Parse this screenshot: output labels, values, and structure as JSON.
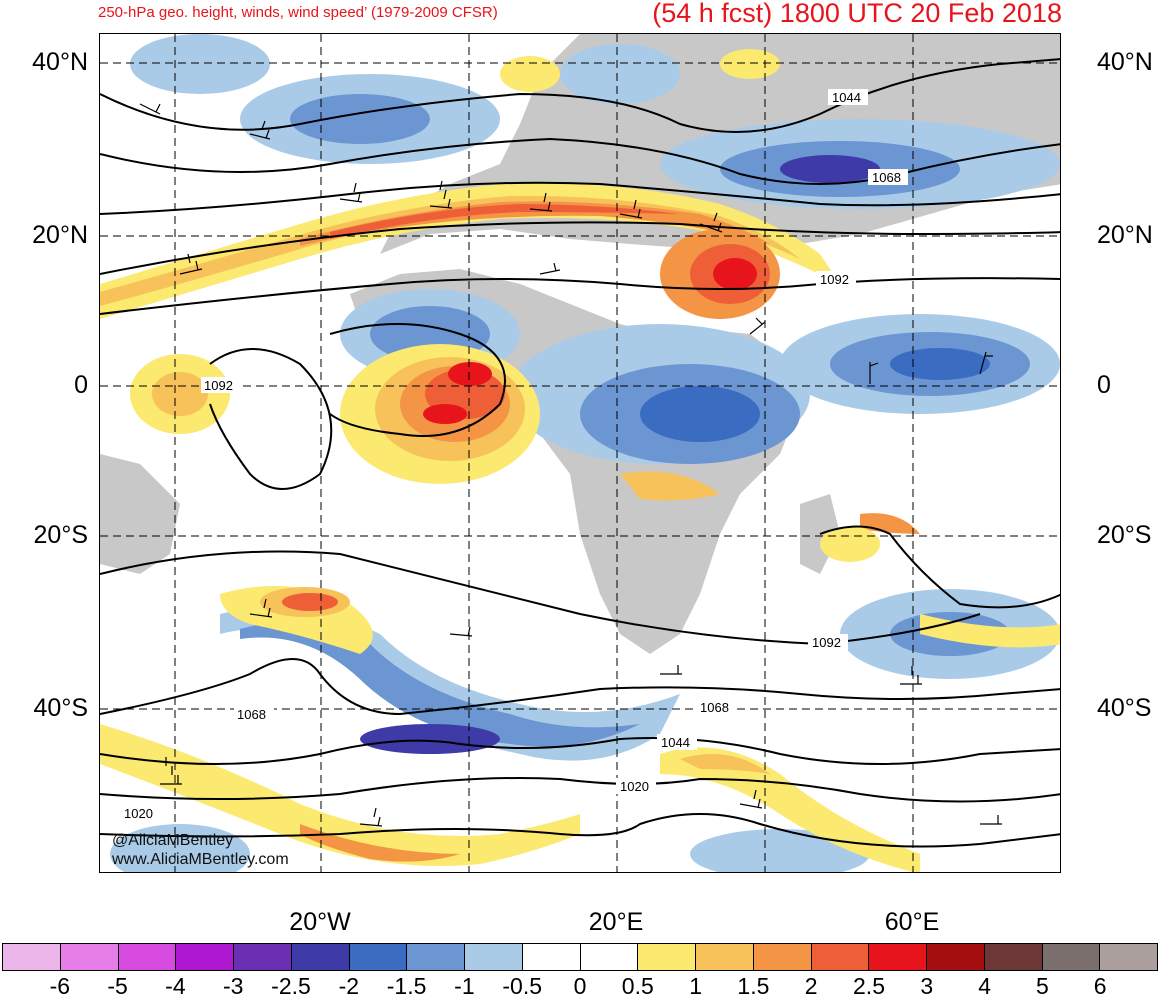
{
  "header": {
    "title_left": "250-hPa geo. height, winds, wind speed’ (1979-2009 CFSR)",
    "title_right": "(54 h fcst) 1800 UTC 20 Feb 2018"
  },
  "axes": {
    "lat_labels": [
      "40°N",
      "20°N",
      "0",
      "20°S",
      "40°S"
    ],
    "lon_labels": [
      "20°W",
      "20°E",
      "60°E"
    ]
  },
  "contour_labels": [
    "1044",
    "1068",
    "1092",
    "1092",
    "1092",
    "1068",
    "1068",
    "1044",
    "1020",
    "1020"
  ],
  "credits": {
    "handle": "@AliciaMBentley",
    "website": "www.AliciaMBentley.com"
  },
  "colorbar": {
    "labels": [
      "-6",
      "-5",
      "-4",
      "-3",
      "-2.5",
      "-2",
      "-1.5",
      "-1",
      "-0.5",
      "0",
      "0.5",
      "1",
      "1.5",
      "2",
      "2.5",
      "3",
      "4",
      "5",
      "6"
    ],
    "colors": [
      "#ecb5e9",
      "#e57ee6",
      "#d84be0",
      "#ad18d0",
      "#6b2fb4",
      "#3e3aa8",
      "#3a6cc1",
      "#6b96d2",
      "#a9cbe8",
      "#ffffff",
      "#ffffff",
      "#fbe970",
      "#f7c25a",
      "#f49546",
      "#ef5f37",
      "#e8141b",
      "#a40e0e",
      "#6e3737",
      "#7b6f6d",
      "#aba09d"
    ]
  },
  "colors": {
    "title": "#e8141b",
    "land": "#c8c8c8",
    "contour": "#000000"
  }
}
